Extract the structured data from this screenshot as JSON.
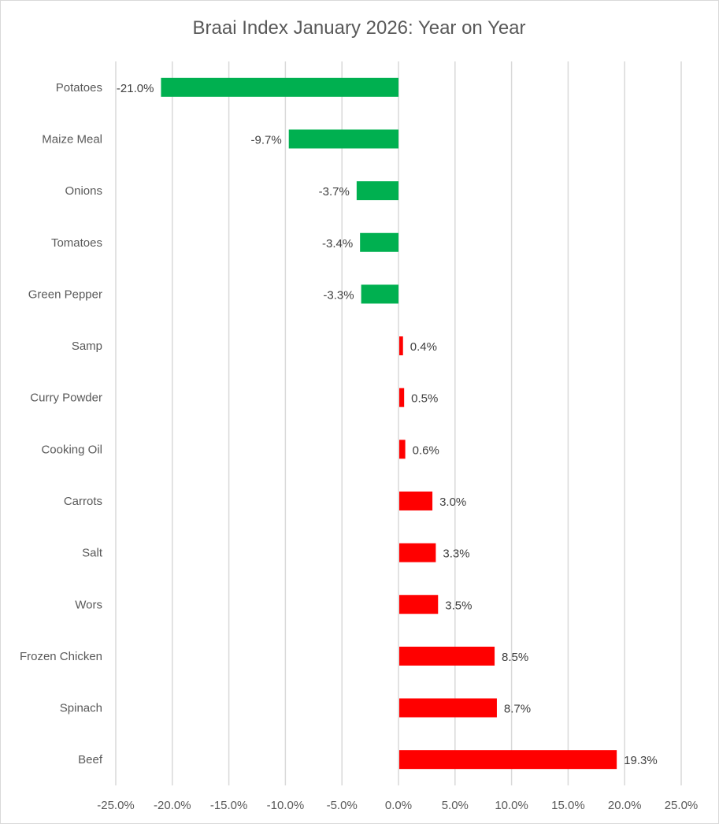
{
  "chart_data": {
    "type": "bar",
    "orientation": "horizontal",
    "title": "Braai Index January 2026: Year on Year",
    "xlabel": "",
    "ylabel": "",
    "categories": [
      "Potatoes",
      "Maize Meal",
      "Onions",
      "Tomatoes",
      "Green Pepper",
      "Samp",
      "Curry Powder",
      "Cooking Oil",
      "Carrots",
      "Salt",
      "Wors",
      "Frozen Chicken",
      "Spinach",
      "Beef"
    ],
    "values": [
      -21.0,
      -9.7,
      -3.7,
      -3.4,
      -3.3,
      0.4,
      0.5,
      0.6,
      3.0,
      3.3,
      3.5,
      8.5,
      8.7,
      19.3
    ],
    "data_labels": [
      "-21.0%",
      "-9.7%",
      "-3.7%",
      "-3.4%",
      "-3.3%",
      "0.4%",
      "0.5%",
      "0.6%",
      "3.0%",
      "3.3%",
      "3.5%",
      "8.5%",
      "8.7%",
      "19.3%"
    ],
    "xlim": [
      -25,
      25
    ],
    "x_ticks": [
      -25,
      -20,
      -15,
      -10,
      -5,
      0,
      5,
      10,
      15,
      20,
      25
    ],
    "x_tick_labels": [
      "-25.0%",
      "-20.0%",
      "-15.0%",
      "-10.0%",
      "-5.0%",
      "0.0%",
      "5.0%",
      "10.0%",
      "15.0%",
      "20.0%",
      "25.0%"
    ],
    "grid": "vertical",
    "legend": "none",
    "colors": {
      "negative": "#00B050",
      "positive": "#FF0000",
      "grid": "#D9D9D9",
      "text": "#595959"
    }
  }
}
